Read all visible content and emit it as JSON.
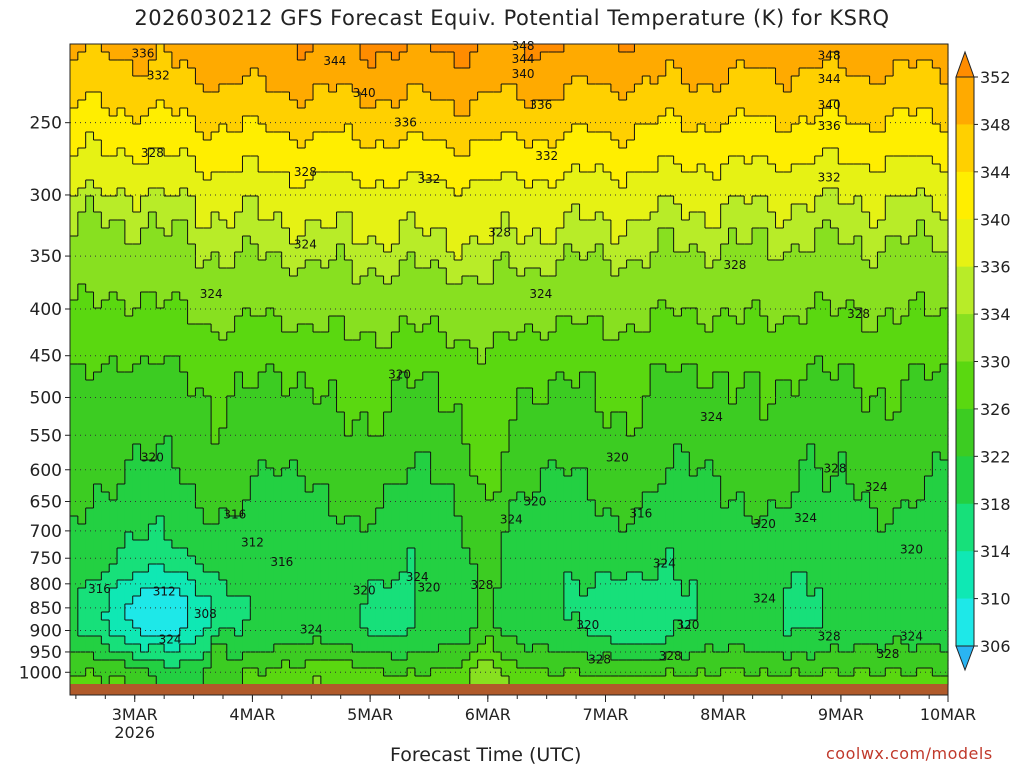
{
  "title": "2026030212 GFS Forecast Equiv. Potential Temperature (K) for KSRQ",
  "xlabel": "Forecast Time (UTC)",
  "credit": "coolwx.com/models",
  "chart_data": {
    "type": "heatmap",
    "title": "2026030212 GFS Forecast Equiv. Potential Temperature (K) for KSRQ",
    "xlabel": "Forecast Time (UTC)",
    "ylabel": "",
    "x_ticks": [
      "3MAR",
      "4MAR",
      "5MAR",
      "6MAR",
      "7MAR",
      "8MAR",
      "9MAR",
      "10MAR"
    ],
    "x_tick_sub": "2026",
    "y_ticks": [
      250,
      300,
      350,
      400,
      450,
      500,
      550,
      600,
      650,
      700,
      750,
      800,
      850,
      900,
      950,
      1000
    ],
    "y_scale": "log",
    "y_direction": "reversed",
    "x_range_days": [
      2.45,
      9.91
    ],
    "y_range_hpa": [
      205,
      1030
    ],
    "colorbar": {
      "levels": [
        306,
        310,
        314,
        318,
        322,
        326,
        330,
        334,
        336,
        340,
        344,
        348,
        352
      ],
      "colors": [
        "#2ab4f2",
        "#1ee8e8",
        "#0fe8b4",
        "#17e07a",
        "#23d042",
        "#3ccc22",
        "#5ad810",
        "#88e020",
        "#b8ec28",
        "#e6f214",
        "#ffee00",
        "#ffd000",
        "#ffaa00",
        "#ff8c00"
      ]
    },
    "contour_labels": [
      {
        "text": "336",
        "x": 3.07,
        "p": 210
      },
      {
        "text": "332",
        "x": 3.2,
        "p": 222
      },
      {
        "text": "344",
        "x": 4.7,
        "p": 214
      },
      {
        "text": "340",
        "x": 4.95,
        "p": 232
      },
      {
        "text": "336",
        "x": 5.3,
        "p": 250
      },
      {
        "text": "348",
        "x": 6.3,
        "p": 206
      },
      {
        "text": "344",
        "x": 6.3,
        "p": 213
      },
      {
        "text": "340",
        "x": 6.3,
        "p": 221
      },
      {
        "text": "336",
        "x": 6.45,
        "p": 239
      },
      {
        "text": "332",
        "x": 6.5,
        "p": 272
      },
      {
        "text": "348",
        "x": 8.9,
        "p": 211
      },
      {
        "text": "344",
        "x": 8.9,
        "p": 224
      },
      {
        "text": "340",
        "x": 8.9,
        "p": 239
      },
      {
        "text": "336",
        "x": 8.9,
        "p": 252
      },
      {
        "text": "332",
        "x": 8.9,
        "p": 287
      },
      {
        "text": "328",
        "x": 3.15,
        "p": 270
      },
      {
        "text": "328",
        "x": 4.45,
        "p": 283
      },
      {
        "text": "332",
        "x": 5.5,
        "p": 288
      },
      {
        "text": "328",
        "x": 6.1,
        "p": 330
      },
      {
        "text": "324",
        "x": 4.45,
        "p": 340
      },
      {
        "text": "324",
        "x": 3.65,
        "p": 385
      },
      {
        "text": "324",
        "x": 6.45,
        "p": 385
      },
      {
        "text": "328",
        "x": 8.1,
        "p": 358
      },
      {
        "text": "328",
        "x": 9.15,
        "p": 405
      },
      {
        "text": "320",
        "x": 5.25,
        "p": 472
      },
      {
        "text": "324",
        "x": 7.9,
        "p": 525
      },
      {
        "text": "320",
        "x": 3.15,
        "p": 582
      },
      {
        "text": "320",
        "x": 7.1,
        "p": 582
      },
      {
        "text": "328",
        "x": 8.95,
        "p": 598
      },
      {
        "text": "324",
        "x": 9.3,
        "p": 627
      },
      {
        "text": "316",
        "x": 3.85,
        "p": 672
      },
      {
        "text": "316",
        "x": 7.3,
        "p": 670
      },
      {
        "text": "320",
        "x": 6.4,
        "p": 650
      },
      {
        "text": "324",
        "x": 6.2,
        "p": 680
      },
      {
        "text": "324",
        "x": 8.7,
        "p": 678
      },
      {
        "text": "320",
        "x": 8.35,
        "p": 688
      },
      {
        "text": "312",
        "x": 4.0,
        "p": 721
      },
      {
        "text": "316",
        "x": 4.25,
        "p": 757
      },
      {
        "text": "320",
        "x": 9.6,
        "p": 734
      },
      {
        "text": "324",
        "x": 7.5,
        "p": 760
      },
      {
        "text": "316",
        "x": 2.7,
        "p": 811
      },
      {
        "text": "312",
        "x": 3.25,
        "p": 816
      },
      {
        "text": "324",
        "x": 5.4,
        "p": 786
      },
      {
        "text": "320",
        "x": 5.5,
        "p": 807
      },
      {
        "text": "320",
        "x": 4.95,
        "p": 814
      },
      {
        "text": "328",
        "x": 5.95,
        "p": 802
      },
      {
        "text": "324",
        "x": 8.35,
        "p": 830
      },
      {
        "text": "308",
        "x": 3.6,
        "p": 863
      },
      {
        "text": "324",
        "x": 4.5,
        "p": 898
      },
      {
        "text": "324",
        "x": 3.3,
        "p": 921
      },
      {
        "text": "320",
        "x": 6.85,
        "p": 888
      },
      {
        "text": "320",
        "x": 7.7,
        "p": 888
      },
      {
        "text": "328",
        "x": 8.9,
        "p": 914
      },
      {
        "text": "324",
        "x": 9.6,
        "p": 914
      },
      {
        "text": "328",
        "x": 7.55,
        "p": 960
      },
      {
        "text": "328",
        "x": 6.95,
        "p": 968
      },
      {
        "text": "328",
        "x": 9.4,
        "p": 955
      }
    ]
  }
}
